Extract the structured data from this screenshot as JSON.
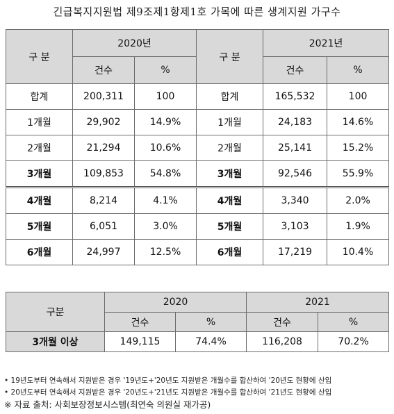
{
  "title": "긴급복지지원법 제9조제1항제1호 가목에 따른 생계지원 가구수",
  "table1": {
    "label_header": "구 분",
    "years": [
      "2020년",
      "2021년"
    ],
    "sub_headers": [
      "건수",
      "%",
      "건수",
      "%"
    ],
    "rows": [
      {
        "label": "합계",
        "c2020": "200,311",
        "p2020": "100",
        "c2021": "165,532",
        "p2021": "100",
        "bold": false
      },
      {
        "label": "1개월",
        "c2020": "29,902",
        "p2020": "14.9%",
        "c2021": "24,183",
        "p2021": "14.6%",
        "bold": false
      },
      {
        "label": "2개월",
        "c2020": "21,294",
        "p2020": "10.6%",
        "c2021": "25,141",
        "p2021": "15.2%",
        "bold": false
      },
      {
        "label": "3개월",
        "c2020": "109,853",
        "p2020": "54.8%",
        "c2021": "92,546",
        "p2021": "55.9%",
        "bold": true
      },
      {
        "label": "4개월",
        "c2020": "8,214",
        "p2020": "4.1%",
        "c2021": "3,340",
        "p2021": "2.0%",
        "bold": true
      },
      {
        "label": "5개월",
        "c2020": "6,051",
        "p2020": "3.0%",
        "c2021": "3,103",
        "p2021": "1.9%",
        "bold": true
      },
      {
        "label": "6개월",
        "c2020": "24,997",
        "p2020": "12.5%",
        "c2021": "17,219",
        "p2021": "10.4%",
        "bold": true
      }
    ]
  },
  "table2": {
    "label_header": "구분",
    "years": [
      "2020",
      "2021"
    ],
    "sub_headers": [
      "건수",
      "%",
      "건수",
      "%"
    ],
    "row": {
      "label": "3개월 이상",
      "c2020": "149,115",
      "p2020": "74.4%",
      "c2021": "116,208",
      "p2021": "70.2%"
    }
  },
  "notes": [
    "• 19년도부터 연속해서 지원받은 경우 '19년도+'20년도 지원받은 개월수를 합산하여 '20년도 현황에 산입",
    "• 20년도부터 연속해서 지원받은 경우 '20년도+'21년도 지원받은 개월수를 합산하여 '21년도 현황에 산입"
  ],
  "source": "※ 자료 출처: 사회보장정보시스템(최연숙 의원실 재가공)"
}
